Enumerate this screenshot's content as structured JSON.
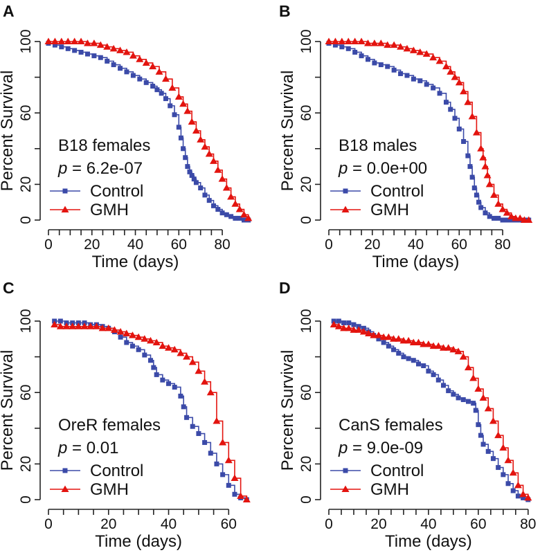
{
  "colors": {
    "control": "#3b4aa8",
    "gmh": "#e3140f"
  },
  "chart_data": [
    {
      "panel": "A",
      "type": "line",
      "annotation": "B18 females",
      "p_label": "p",
      "p_value": " = 6.2e-07",
      "xlabel": "Time (days)",
      "ylabel": "Percent Survival",
      "xlim": [
        0,
        94
      ],
      "ylim": [
        0,
        100
      ],
      "xticks": [
        0,
        20,
        40,
        60,
        80
      ],
      "yticks": [
        0,
        20,
        60,
        100
      ],
      "series": [
        {
          "name": "Control",
          "marker": "square",
          "x": [
            0,
            3,
            6,
            9,
            12,
            15,
            18,
            21,
            24,
            27,
            30,
            33,
            36,
            39,
            42,
            45,
            48,
            50,
            52,
            54,
            56,
            58,
            60,
            61,
            62,
            63,
            64,
            65,
            66,
            67,
            68,
            70,
            72,
            74,
            76,
            78,
            80,
            82,
            84,
            86,
            88,
            90,
            92
          ],
          "y": [
            99,
            98,
            97,
            96,
            95,
            94,
            93,
            92,
            91,
            89,
            87,
            85,
            83,
            81,
            79,
            77,
            75,
            73,
            71,
            68,
            64,
            59,
            52,
            46,
            40,
            35,
            30,
            27,
            25,
            23,
            21,
            18,
            14,
            11,
            8,
            6,
            4,
            3,
            2,
            1,
            1,
            0,
            0
          ]
        },
        {
          "name": "GMH",
          "marker": "triangle",
          "x": [
            0,
            3,
            6,
            9,
            12,
            15,
            18,
            21,
            24,
            27,
            30,
            33,
            36,
            39,
            42,
            45,
            48,
            51,
            54,
            57,
            60,
            62,
            64,
            66,
            68,
            70,
            72,
            74,
            76,
            78,
            80,
            82,
            84,
            86,
            88,
            90,
            92
          ],
          "y": [
            100,
            100,
            100,
            100,
            100,
            100,
            99,
            99,
            98,
            97,
            96,
            95,
            94,
            92,
            90,
            88,
            86,
            83,
            79,
            74,
            69,
            65,
            61,
            55,
            50,
            45,
            41,
            37,
            33,
            28,
            23,
            18,
            13,
            9,
            6,
            3,
            1
          ]
        }
      ],
      "legend": [
        "Control",
        "GMH"
      ]
    },
    {
      "panel": "B",
      "type": "line",
      "annotation": "B18 males",
      "p_label": "p",
      "p_value": " = 0.0e+00",
      "xlabel": "Time (days)",
      "ylabel": "Percent Survival",
      "xlim": [
        0,
        94
      ],
      "ylim": [
        0,
        100
      ],
      "xticks": [
        0,
        20,
        40,
        60,
        80
      ],
      "yticks": [
        0,
        20,
        60,
        100
      ],
      "series": [
        {
          "name": "Control",
          "marker": "square",
          "x": [
            0,
            3,
            6,
            9,
            12,
            15,
            18,
            21,
            24,
            27,
            30,
            33,
            36,
            39,
            42,
            45,
            48,
            51,
            54,
            56,
            58,
            60,
            62,
            64,
            65,
            66,
            67,
            68,
            69,
            70,
            72,
            74,
            76,
            78,
            80,
            82,
            84,
            86,
            88,
            90,
            92
          ],
          "y": [
            99,
            98,
            97,
            96,
            94,
            92,
            90,
            88,
            87,
            86,
            84,
            82,
            81,
            79,
            78,
            76,
            74,
            71,
            66,
            62,
            57,
            51,
            44,
            36,
            30,
            24,
            18,
            14,
            10,
            7,
            4,
            2,
            1,
            1,
            0,
            0,
            0,
            0,
            0,
            0,
            0
          ]
        },
        {
          "name": "GMH",
          "marker": "triangle",
          "x": [
            0,
            3,
            6,
            9,
            12,
            15,
            18,
            21,
            24,
            27,
            30,
            33,
            36,
            39,
            42,
            45,
            48,
            51,
            54,
            56,
            58,
            60,
            62,
            64,
            66,
            68,
            70,
            71,
            72,
            73,
            74,
            76,
            78,
            80,
            82,
            84,
            86,
            88,
            90,
            92
          ],
          "y": [
            100,
            100,
            100,
            100,
            100,
            100,
            99,
            99,
            99,
            98,
            98,
            97,
            96,
            95,
            94,
            93,
            91,
            89,
            86,
            83,
            80,
            77,
            72,
            66,
            58,
            49,
            40,
            35,
            30,
            25,
            20,
            14,
            9,
            6,
            4,
            2,
            1,
            1,
            0,
            0
          ]
        }
      ],
      "legend": [
        "Control",
        "GMH"
      ]
    },
    {
      "panel": "C",
      "type": "line",
      "annotation": "OreR females",
      "p_label": "p",
      "p_value": " = 0.01",
      "xlabel": "Time (days)",
      "ylabel": "Percent Survival",
      "xlim": [
        0,
        68
      ],
      "ylim": [
        0,
        100
      ],
      "xticks": [
        0,
        20,
        40,
        60
      ],
      "yticks": [
        0,
        20,
        60,
        100
      ],
      "series": [
        {
          "name": "Control",
          "marker": "square",
          "x": [
            2,
            4,
            6,
            8,
            10,
            12,
            14,
            16,
            18,
            20,
            22,
            24,
            26,
            28,
            30,
            32,
            34,
            35,
            36,
            38,
            40,
            42,
            44,
            45,
            46,
            48,
            50,
            52,
            54,
            56,
            58,
            60,
            62,
            64,
            66
          ],
          "y": [
            100,
            100,
            99,
            99,
            99,
            99,
            98,
            98,
            97,
            96,
            94,
            91,
            88,
            86,
            84,
            81,
            78,
            74,
            70,
            67,
            65,
            63,
            58,
            52,
            46,
            41,
            37,
            32,
            26,
            20,
            14,
            8,
            3,
            1,
            0
          ]
        },
        {
          "name": "GMH",
          "marker": "triangle",
          "x": [
            2,
            4,
            6,
            8,
            10,
            12,
            14,
            16,
            18,
            20,
            22,
            24,
            26,
            28,
            30,
            32,
            34,
            36,
            38,
            40,
            42,
            44,
            46,
            48,
            50,
            52,
            54,
            56,
            58,
            60,
            62,
            64,
            66
          ],
          "y": [
            98,
            97,
            97,
            97,
            97,
            97,
            97,
            97,
            96,
            96,
            95,
            94,
            93,
            92,
            91,
            90,
            89,
            88,
            86,
            85,
            84,
            82,
            80,
            77,
            72,
            66,
            60,
            44,
            32,
            22,
            12,
            2,
            0
          ]
        }
      ],
      "legend": [
        "Control",
        "GMH"
      ]
    },
    {
      "panel": "D",
      "type": "line",
      "annotation": "CanS females",
      "p_label": "p",
      "p_value": " = 9.0e-09",
      "xlabel": "Time (days)",
      "ylabel": "Percent Survival",
      "xlim": [
        0,
        82
      ],
      "ylim": [
        0,
        100
      ],
      "xticks": [
        0,
        20,
        40,
        60,
        80
      ],
      "yticks": [
        0,
        20,
        60,
        100
      ],
      "series": [
        {
          "name": "Control",
          "marker": "square",
          "x": [
            2,
            4,
            6,
            8,
            10,
            12,
            14,
            16,
            18,
            20,
            22,
            24,
            26,
            28,
            30,
            32,
            34,
            36,
            38,
            40,
            42,
            44,
            46,
            48,
            50,
            52,
            54,
            56,
            58,
            59,
            60,
            61,
            62,
            64,
            66,
            68,
            70,
            72,
            74,
            76,
            78,
            80
          ],
          "y": [
            100,
            100,
            99,
            99,
            98,
            97,
            96,
            94,
            92,
            90,
            88,
            86,
            84,
            82,
            80,
            79,
            78,
            76,
            75,
            72,
            70,
            67,
            64,
            61,
            59,
            57,
            56,
            55,
            54,
            50,
            42,
            36,
            31,
            27,
            23,
            18,
            14,
            9,
            5,
            2,
            1,
            0
          ]
        },
        {
          "name": "GMH",
          "marker": "triangle",
          "x": [
            2,
            4,
            6,
            8,
            10,
            12,
            14,
            16,
            18,
            20,
            22,
            24,
            26,
            28,
            30,
            32,
            34,
            36,
            38,
            40,
            42,
            44,
            46,
            48,
            50,
            52,
            54,
            56,
            58,
            60,
            62,
            64,
            66,
            68,
            70,
            72,
            74,
            76,
            78,
            80
          ],
          "y": [
            98,
            97,
            96,
            96,
            95,
            95,
            94,
            93,
            92,
            92,
            91,
            91,
            90,
            90,
            89,
            89,
            88,
            88,
            87,
            87,
            86,
            86,
            85,
            85,
            84,
            83,
            80,
            74,
            68,
            62,
            57,
            51,
            44,
            36,
            29,
            22,
            15,
            8,
            3,
            1
          ]
        }
      ],
      "legend": [
        "Control",
        "GMH"
      ]
    }
  ]
}
